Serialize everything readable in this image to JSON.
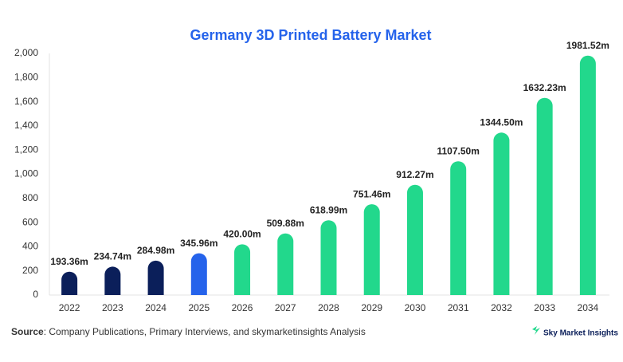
{
  "chart_data": {
    "type": "bar",
    "title": "Germany 3D Printed Battery Market",
    "categories": [
      "2022",
      "2023",
      "2024",
      "2025",
      "2026",
      "2027",
      "2028",
      "2029",
      "2030",
      "2031",
      "2032",
      "2033",
      "2034"
    ],
    "values": [
      193.36,
      234.74,
      284.98,
      345.96,
      420.0,
      509.88,
      618.99,
      751.46,
      912.27,
      1107.5,
      1344.5,
      1632.23,
      1981.52
    ],
    "value_labels": [
      "193.36m",
      "234.74m",
      "284.98m",
      "345.96m",
      "420.00m",
      "509.88m",
      "618.99m",
      "751.46m",
      "912.27m",
      "1107.50m",
      "1344.50m",
      "1632.23m",
      "1981.52m"
    ],
    "colors": [
      "#0b1f5a",
      "#0b1f5a",
      "#0b1f5a",
      "#2563eb",
      "#22d88c",
      "#22d88c",
      "#22d88c",
      "#22d88c",
      "#22d88c",
      "#22d88c",
      "#22d88c",
      "#22d88c",
      "#22d88c"
    ],
    "ylim": [
      0,
      2000
    ],
    "yticks": [
      0,
      200,
      400,
      600,
      800,
      {
        "value": 1000,
        "label": "1,000"
      },
      {
        "value": 1200,
        "label": "1,200"
      },
      {
        "value": 1400,
        "label": "1,400"
      },
      {
        "value": 1600,
        "label": "1,600"
      },
      {
        "value": 1800,
        "label": "1,800"
      },
      {
        "value": 2000,
        "label": "2,000"
      }
    ],
    "grid": false,
    "source_label": "Source",
    "source_text": ": Company Publications, Primary Interviews, and skymarketinsights Analysis",
    "brand": "Sky Market Insights"
  }
}
